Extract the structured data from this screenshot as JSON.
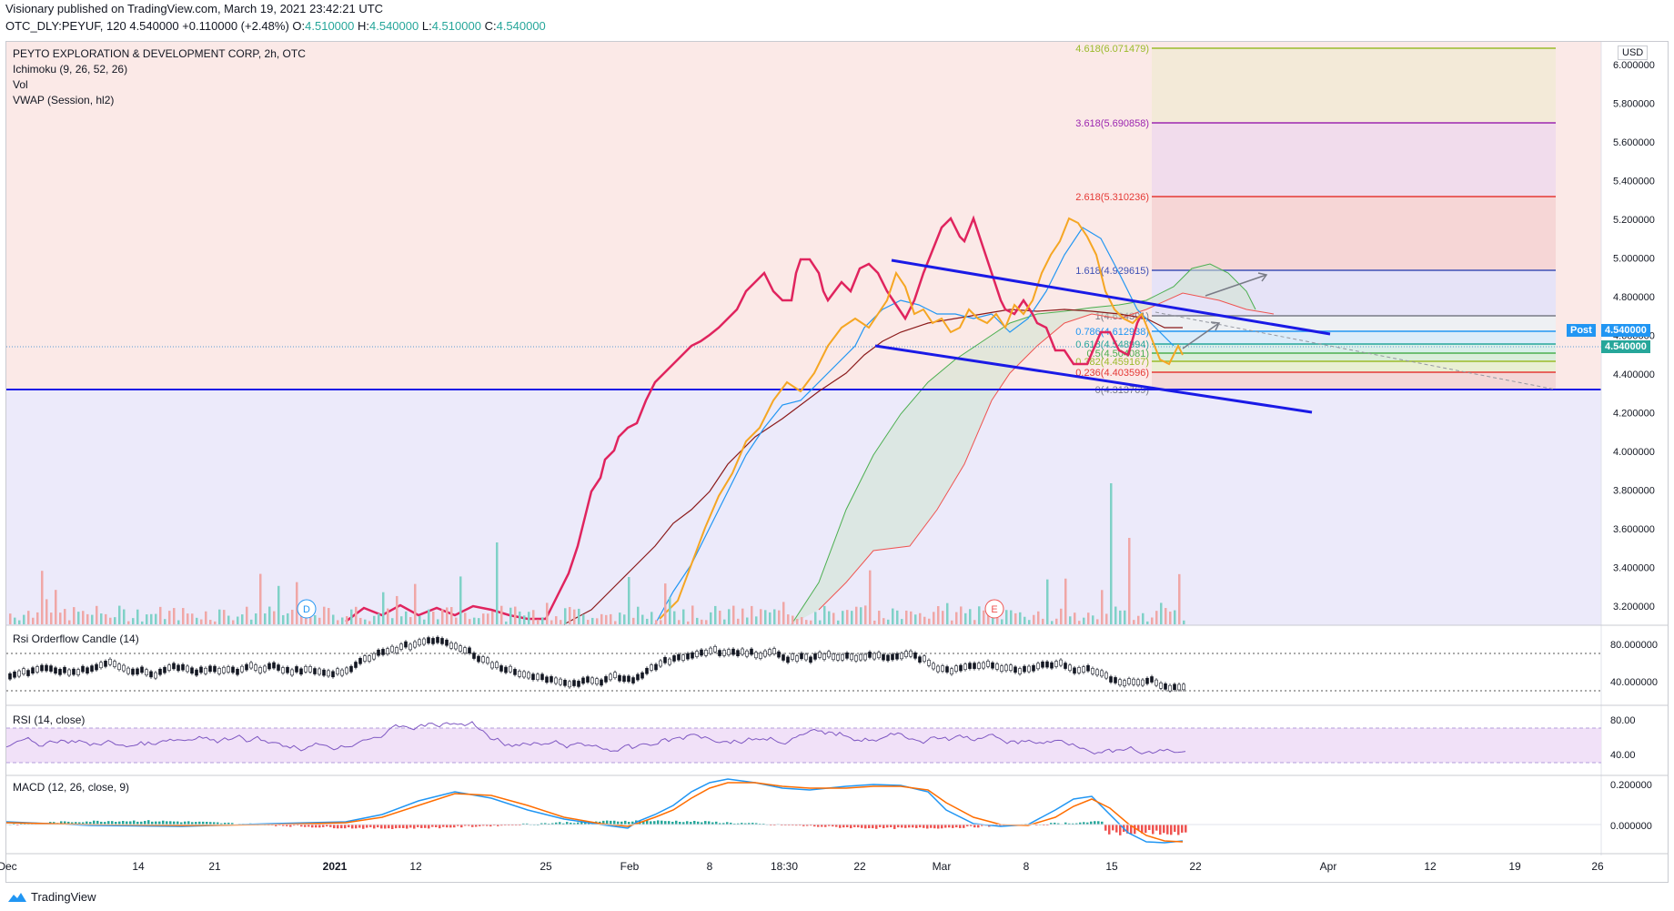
{
  "header": {
    "publisher": "Visionary published on TradingView.com, March 19, 2021 23:42:21 UTC",
    "symbol": "OTC_DLY:PEYUF, 120",
    "last": "4.540000",
    "change": "+0.110000 (+2.48%)",
    "o_label": "O:",
    "o_value": "4.510000",
    "h_label": "H:",
    "h_value": "4.540000",
    "l_label": "L:",
    "l_value": "4.510000",
    "c_label": "C:",
    "c_value": "4.540000"
  },
  "main_pane": {
    "title": "PEYTO EXPLORATION & DEVELOPMENT CORP, 2h, OTC",
    "indicators": [
      "Ichimoku (9, 26, 52, 26)",
      "Vol",
      "VWAP (Session, hl2)"
    ],
    "currency": "USD",
    "price_axis": [
      "6.000000",
      "5.800000",
      "5.600000",
      "5.400000",
      "5.200000",
      "5.000000",
      "4.800000",
      "4.600000",
      "4.400000",
      "4.200000",
      "4.000000",
      "3.800000",
      "3.600000",
      "3.400000",
      "3.200000"
    ],
    "post_label": "Post",
    "post_price": "4.540000",
    "last_price": "4.540000",
    "fib_levels": [
      {
        "label": "4.618(6.071479)",
        "color": "#9bbb2b"
      },
      {
        "label": "3.618(5.690858)",
        "color": "#9c27b0"
      },
      {
        "label": "2.618(5.310236)",
        "color": "#e53935"
      },
      {
        "label": "1.618(4.929615)",
        "color": "#3f51b5"
      },
      {
        "label": "1(4.694391)",
        "color": "#787b86"
      },
      {
        "label": "0.786(4.612938)",
        "color": "#2196f3"
      },
      {
        "label": "0.618(4.548994)",
        "color": "#26a69a"
      },
      {
        "label": "0.5(4.504081)",
        "color": "#4caf50"
      },
      {
        "label": "0.382(4.459167)",
        "color": "#9bbb2b"
      },
      {
        "label": "0.236(4.403596)",
        "color": "#e53935"
      },
      {
        "label": "0(4.313769)",
        "color": "#787b86"
      }
    ],
    "event_markers": [
      "D",
      "E"
    ]
  },
  "rsi_orderflow": {
    "title": "Rsi Orderflow Candle (14)",
    "axis": [
      "80.000000",
      "40.000000"
    ]
  },
  "rsi": {
    "title": "RSI (14, close)",
    "axis": [
      "80.00",
      "40.00"
    ]
  },
  "macd": {
    "title": "MACD (12, 26, close, 9)",
    "axis": [
      "0.200000",
      "0.000000"
    ]
  },
  "time_axis": [
    "Dec",
    "14",
    "21",
    "2021",
    "12",
    "25",
    "Feb",
    "8",
    "18:30",
    "22",
    "Mar",
    "8",
    "15",
    "22",
    "Apr",
    "12",
    "19",
    "26"
  ],
  "footer": {
    "brand": "TradingView"
  },
  "colors": {
    "up": "#26a69a",
    "down": "#ef5350",
    "channel": "#1a1ae6",
    "vwap": "#e0245e",
    "tenkan": "#2196f3",
    "kijun": "#8b1a1a",
    "fib_blue": "#3f51b5"
  }
}
